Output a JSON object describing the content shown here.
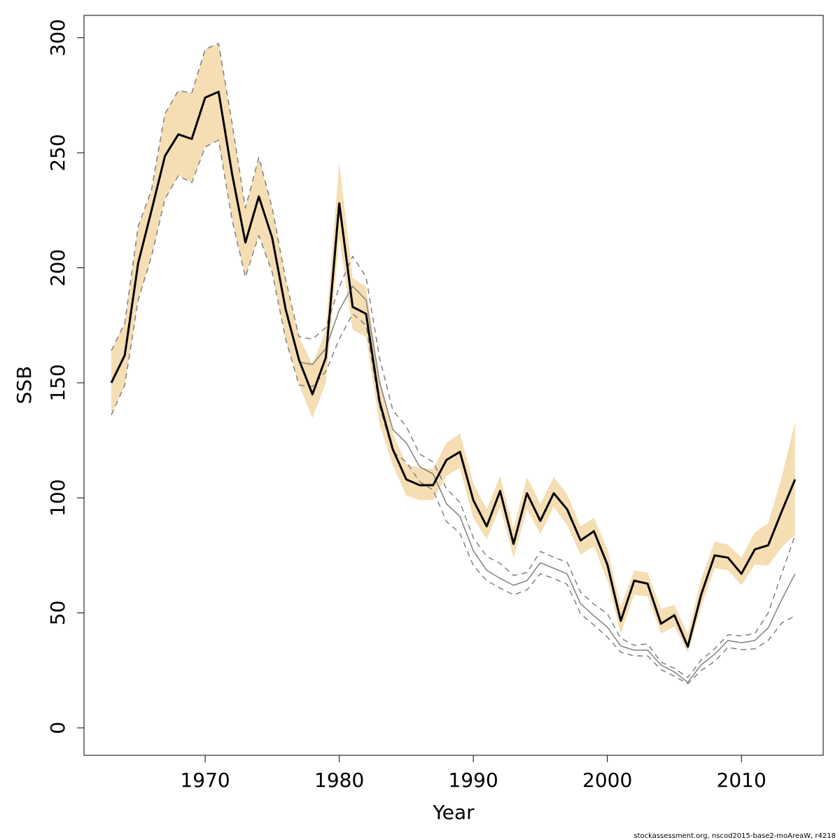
{
  "chart_data": {
    "type": "line",
    "xlabel": "Year",
    "ylabel": "SSB",
    "footer": "stockassessment.org, nscod2015-base2-moAreaW, r4218",
    "x": [
      1963,
      1964,
      1965,
      1966,
      1967,
      1968,
      1969,
      1970,
      1971,
      1972,
      1973,
      1974,
      1975,
      1976,
      1977,
      1978,
      1979,
      1980,
      1981,
      1982,
      1983,
      1984,
      1985,
      1986,
      1987,
      1988,
      1989,
      1990,
      1991,
      1992,
      1993,
      1994,
      1995,
      1996,
      1997,
      1998,
      1999,
      2000,
      2001,
      2002,
      2003,
      2004,
      2005,
      2006,
      2007,
      2008,
      2009,
      2010,
      2011,
      2012,
      2013,
      2014
    ],
    "band": {
      "color": "#f5deb3",
      "upper": [
        164,
        176,
        218,
        234,
        267,
        277,
        276,
        295,
        297.5,
        263,
        226,
        248,
        226,
        195,
        170,
        158,
        173,
        246,
        195.6,
        191.7,
        152,
        128,
        114.7,
        113,
        112.6,
        124,
        128,
        106.5,
        95,
        109.5,
        86.7,
        109,
        97.4,
        109,
        101.6,
        87.6,
        91.3,
        77.6,
        53,
        68.5,
        67.5,
        51.7,
        53.5,
        40.8,
        64.8,
        81,
        79.7,
        74,
        85,
        89,
        109,
        133
      ],
      "lower": [
        136,
        149,
        186,
        205,
        230,
        240,
        237,
        252.5,
        255.5,
        221,
        196,
        214,
        198,
        169,
        149,
        134.8,
        150,
        213,
        173,
        170,
        132,
        114,
        101,
        99,
        99,
        109.5,
        113,
        91.3,
        82,
        96,
        74,
        95,
        84.3,
        96,
        88.2,
        75.4,
        79,
        64,
        41,
        57.8,
        57.2,
        41,
        44,
        32.9,
        52.6,
        69.4,
        68.5,
        62,
        71,
        70.6,
        78.5,
        84
      ]
    },
    "series": [
      {
        "color": "#808080",
        "dashed": true,
        "width": 1.5,
        "values": [
          164,
          176,
          218,
          234,
          267,
          277,
          276,
          295,
          297.5,
          263,
          226,
          248,
          226,
          195,
          170,
          169,
          174,
          191.7,
          205,
          196,
          161,
          138,
          131,
          119,
          115.6,
          104,
          98,
          82.7,
          74.5,
          71.5,
          66.3,
          67.5,
          76.7,
          74.2,
          72,
          59,
          53.8,
          49.6,
          39,
          35.9,
          36.5,
          28.6,
          25.9,
          21.9,
          29.5,
          34.4,
          40.5,
          40,
          41,
          50,
          67,
          83.7
        ]
      },
      {
        "color": "#808080",
        "dashed": true,
        "width": 1.5,
        "values": [
          136,
          149,
          186,
          205,
          230,
          240,
          237,
          252.5,
          255.5,
          221,
          196,
          214,
          198,
          169,
          149,
          148.5,
          155,
          169,
          180,
          175,
          140,
          120,
          115.6,
          107,
          103.4,
          89.7,
          84.6,
          70.6,
          64,
          60.8,
          57.8,
          60,
          67,
          65,
          62.4,
          49.6,
          44.7,
          39.5,
          32.9,
          31.3,
          31.3,
          25.3,
          22.5,
          19.2,
          25,
          28.9,
          35,
          34,
          34.4,
          38,
          45.6,
          48.7
        ]
      },
      {
        "color": "#808080",
        "dashed": false,
        "width": 1.5,
        "values": [
          150,
          162,
          202,
          225,
          248.6,
          258,
          256,
          274,
          276.5,
          241,
          211,
          231,
          213,
          182,
          159,
          158,
          165,
          181.6,
          192,
          186,
          150.6,
          129.6,
          124,
          113.5,
          110.4,
          97.4,
          92,
          77,
          68.5,
          65,
          62,
          64,
          71.8,
          69.4,
          67,
          54,
          48.7,
          43.8,
          35.6,
          33.8,
          33.8,
          27.4,
          24.3,
          19.8,
          27.4,
          32,
          38,
          37,
          38,
          43.5,
          55.7,
          67
        ]
      },
      {
        "color": "#000000",
        "dashed": false,
        "width": 3,
        "values": [
          150,
          162,
          202,
          225,
          248.6,
          258,
          256,
          274,
          276.5,
          241,
          211,
          231,
          213,
          182,
          160,
          145,
          161,
          228,
          183,
          180,
          142,
          121,
          108,
          105.5,
          105.5,
          116.5,
          120,
          99,
          87.6,
          103,
          80,
          102,
          90,
          102,
          95,
          81.5,
          85.5,
          71,
          46.5,
          64,
          62.7,
          45.3,
          49,
          35.3,
          58,
          75,
          74,
          67,
          77.6,
          79.4,
          94,
          108
        ]
      }
    ],
    "xlim": [
      1960.96,
      2016.1
    ],
    "ylim": [
      -11.9,
      309.7
    ],
    "xticks": [
      1970,
      1980,
      1990,
      2000,
      2010
    ],
    "yticks": [
      0,
      50,
      100,
      150,
      200,
      250,
      300
    ]
  }
}
